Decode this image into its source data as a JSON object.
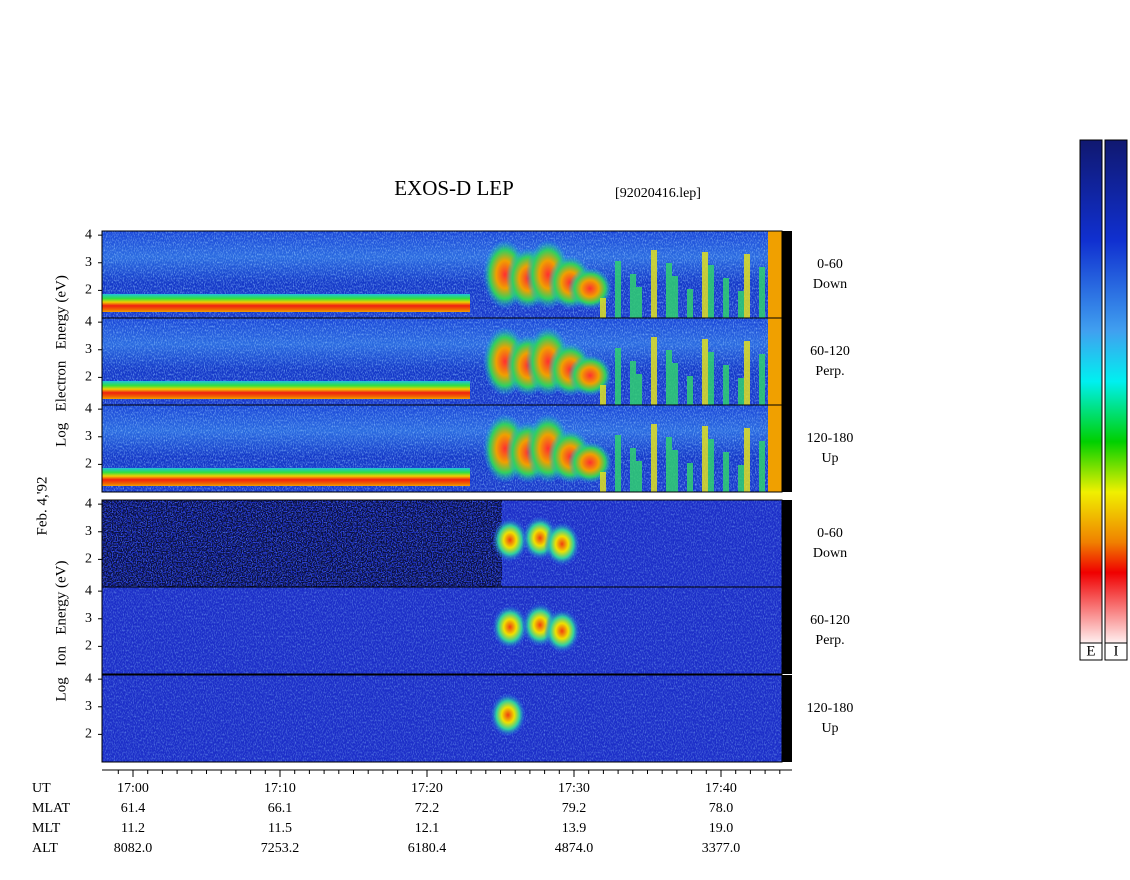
{
  "title": "EXOS-D LEP",
  "file": "[92020416.lep]",
  "date": "Feb. 4,'92",
  "electron_axis_label": "Log   Electron   Energy (eV)",
  "ion_axis_label": "Log   Ion   Energy (eV)",
  "energy_ticks": [
    4,
    3,
    2
  ],
  "electron_panels": [
    {
      "pitch": "0-60",
      "direction": "Down"
    },
    {
      "pitch": "60-120",
      "direction": "Perp."
    },
    {
      "pitch": "120-180",
      "direction": "Up"
    }
  ],
  "ion_panels": [
    {
      "pitch": "0-60",
      "direction": "Down"
    },
    {
      "pitch": "60-120",
      "direction": "Perp."
    },
    {
      "pitch": "120-180",
      "direction": "Up"
    }
  ],
  "times": [
    "17:00",
    "17:10",
    "17:20",
    "17:30",
    "17:40"
  ],
  "rows": [
    {
      "name": "UT",
      "values": []
    },
    {
      "name": "MLAT",
      "values": [
        "61.4",
        "66.1",
        "72.2",
        "79.2",
        "78.0"
      ]
    },
    {
      "name": "MLT",
      "values": [
        "11.2",
        "11.5",
        "12.1",
        "13.9",
        "19.0"
      ]
    },
    {
      "name": "ALT",
      "values": [
        "8082.0",
        "7253.2",
        "6180.4",
        "4874.0",
        "3377.0"
      ]
    }
  ],
  "colorbar_labels": [
    "E",
    "I"
  ]
}
